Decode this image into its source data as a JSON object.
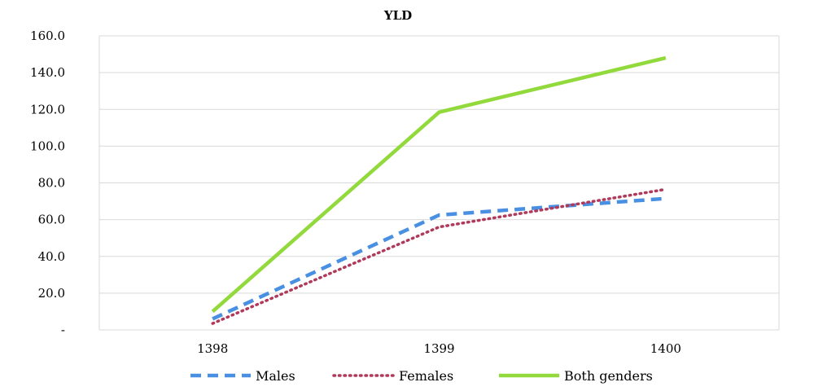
{
  "chart_data": {
    "type": "line",
    "title": "YLD",
    "xlabel": "",
    "ylabel": "",
    "categories": [
      "1398",
      "1399",
      "1400"
    ],
    "y_tick_labels": [
      "-",
      "20.0",
      "40.0",
      "60.0",
      "80.0",
      "100.0",
      "120.0",
      "140.0",
      "160.0"
    ],
    "ylim": [
      0,
      160
    ],
    "grid": "horizontal",
    "legend_position": "bottom",
    "series": [
      {
        "name": "Males",
        "values": [
          6,
          62.5,
          71.5
        ],
        "color": "#4A90E2",
        "style": "dashed"
      },
      {
        "name": "Females",
        "values": [
          3.5,
          56,
          76.5
        ],
        "color": "#B03A5B",
        "style": "dotted"
      },
      {
        "name": "Both genders",
        "values": [
          10,
          118.5,
          148
        ],
        "color": "#92D93C",
        "style": "solid"
      }
    ]
  }
}
